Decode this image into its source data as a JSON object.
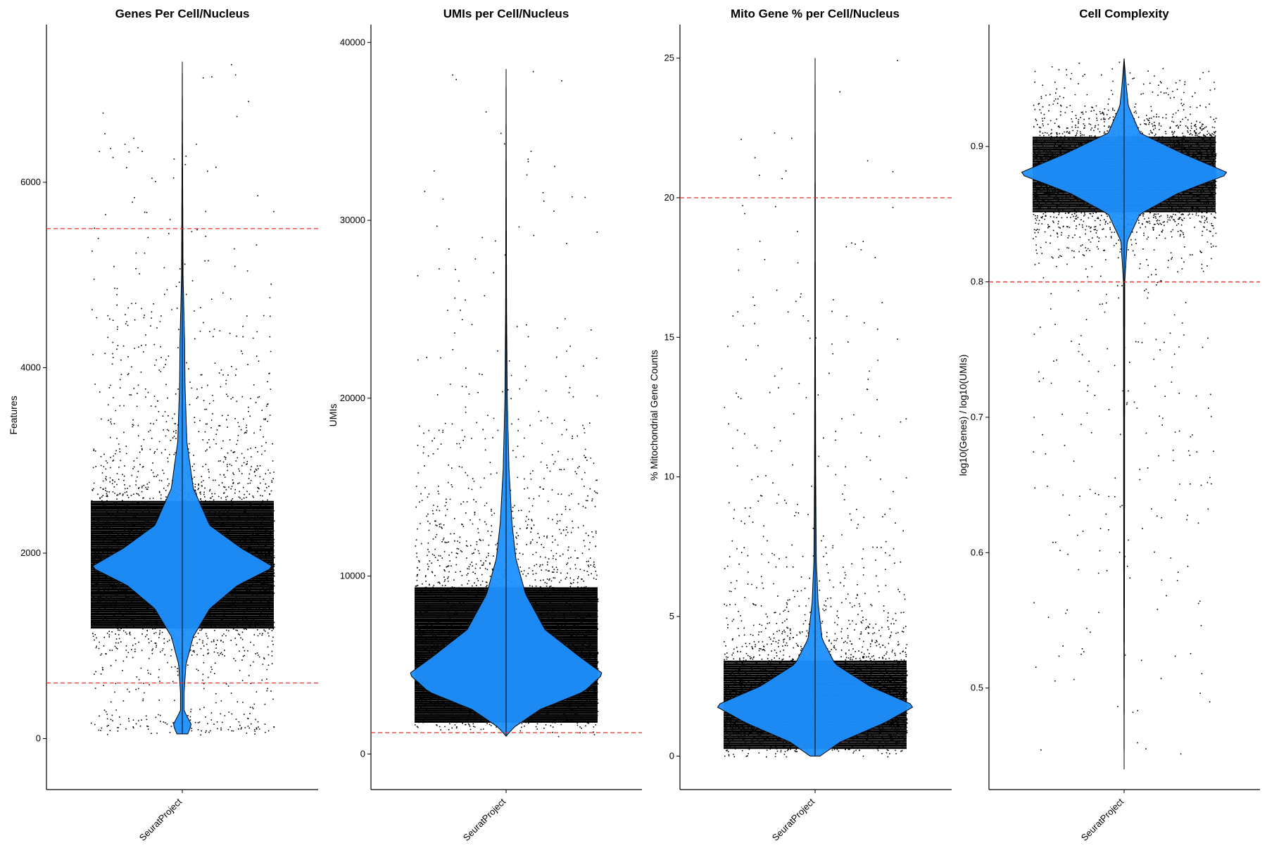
{
  "chart_data": [
    {
      "type": "violin",
      "title": "Genes Per Cell/Nucleus",
      "ylabel": "Features",
      "category": "SeuratProject",
      "ylim": [
        -550,
        7700
      ],
      "yticks": [
        0,
        2000,
        4000,
        6000
      ],
      "thresholds": [
        600,
        5500
      ],
      "distribution": {
        "mode": 1850,
        "median": 1900,
        "min": 50,
        "max": 7300,
        "secondary_mode": 100
      },
      "violin_profile": [
        [
          50,
          0.06
        ],
        [
          150,
          0.1
        ],
        [
          300,
          0.02
        ],
        [
          500,
          0.02
        ],
        [
          800,
          0.04
        ],
        [
          1100,
          0.12
        ],
        [
          1400,
          0.3
        ],
        [
          1650,
          0.6
        ],
        [
          1850,
          1.0
        ],
        [
          2050,
          0.65
        ],
        [
          2300,
          0.3
        ],
        [
          2700,
          0.12
        ],
        [
          3200,
          0.05
        ],
        [
          3800,
          0.03
        ],
        [
          4300,
          0.025
        ],
        [
          5000,
          0.008
        ],
        [
          6000,
          0.004
        ],
        [
          7300,
          0.0
        ]
      ],
      "point_color": "#000000",
      "violin_fill": "#1e90ff",
      "threshold_color": "#e8302e"
    },
    {
      "type": "violin",
      "title": "UMIs per Cell/Nucleus",
      "ylabel": "UMIs",
      "category": "SeuratProject",
      "ylim": [
        -2000,
        41000
      ],
      "yticks": [
        0,
        10000,
        20000,
        30000,
        40000
      ],
      "thresholds": [
        1200
      ],
      "distribution": {
        "mode": 4500,
        "median": 4700,
        "min": 1000,
        "max": 38500
      },
      "violin_profile": [
        [
          1000,
          0.0
        ],
        [
          1500,
          0.08
        ],
        [
          2500,
          0.35
        ],
        [
          3500,
          0.8
        ],
        [
          4500,
          1.0
        ],
        [
          5500,
          0.75
        ],
        [
          7000,
          0.4
        ],
        [
          9000,
          0.2
        ],
        [
          11000,
          0.1
        ],
        [
          13000,
          0.06
        ],
        [
          16000,
          0.03
        ],
        [
          20000,
          0.012
        ],
        [
          25000,
          0.005
        ],
        [
          30000,
          0.003
        ],
        [
          38500,
          0.0
        ]
      ],
      "point_color": "#000000",
      "violin_fill": "#1e90ff",
      "threshold_color": "#e8302e"
    },
    {
      "type": "violin",
      "title": "Mito Gene % per Cell/Nucleus",
      "ylabel": "% Mitochondrial Gene Counts",
      "category": "SeuratProject",
      "ylim": [
        -1.2,
        26.2
      ],
      "yticks": [
        0,
        5,
        10,
        15,
        20,
        25
      ],
      "thresholds": [
        20
      ],
      "distribution": {
        "mode": 1.8,
        "median": 1.9,
        "min": 0,
        "max": 25
      },
      "violin_profile": [
        [
          0,
          0.05
        ],
        [
          0.5,
          0.25
        ],
        [
          1.2,
          0.7
        ],
        [
          1.8,
          1.0
        ],
        [
          2.5,
          0.55
        ],
        [
          3.3,
          0.2
        ],
        [
          4.2,
          0.07
        ],
        [
          5.5,
          0.03
        ],
        [
          7,
          0.012
        ],
        [
          10,
          0.006
        ],
        [
          15,
          0.003
        ],
        [
          20,
          0.002
        ],
        [
          25,
          0.0
        ]
      ],
      "point_color": "#000000",
      "violin_fill": "#1e90ff",
      "threshold_color": "#e8302e"
    },
    {
      "type": "violin",
      "title": "Cell Complexity",
      "ylabel": "log10(Genes) / log10(UMIs)",
      "category": "SeuratProject",
      "ylim": [
        0.425,
        0.99
      ],
      "yticks": [
        0.5,
        0.6,
        0.7,
        0.8,
        0.9
      ],
      "thresholds": [
        0.8
      ],
      "distribution": {
        "mode": 0.882,
        "median": 0.88,
        "min": 0.44,
        "max": 0.965
      },
      "violin_profile": [
        [
          0.44,
          0.0
        ],
        [
          0.6,
          0.004
        ],
        [
          0.8,
          0.006
        ],
        [
          0.83,
          0.03
        ],
        [
          0.85,
          0.15
        ],
        [
          0.865,
          0.5
        ],
        [
          0.88,
          1.0
        ],
        [
          0.895,
          0.55
        ],
        [
          0.91,
          0.15
        ],
        [
          0.93,
          0.04
        ],
        [
          0.945,
          0.02
        ],
        [
          0.965,
          0.0
        ]
      ],
      "point_color": "#000000",
      "violin_fill": "#1e90ff",
      "threshold_color": "#e8302e"
    }
  ]
}
